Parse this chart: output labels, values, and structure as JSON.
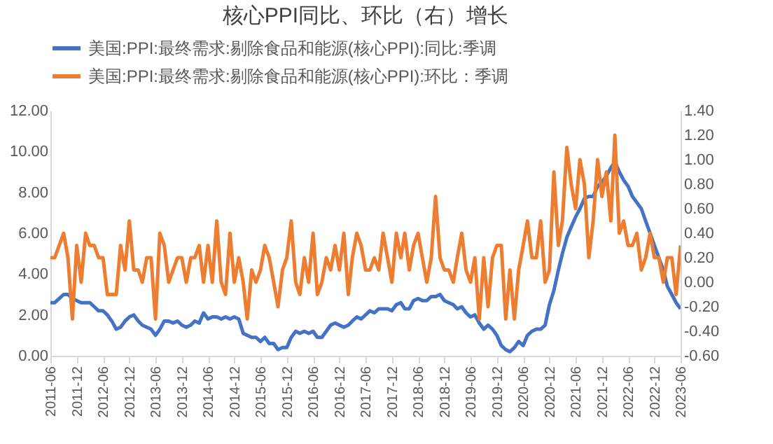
{
  "chart_data": {
    "type": "line",
    "title": "核心PPI同比、环比（右）增长",
    "x": [
      "2011-06",
      "2011-07",
      "2011-08",
      "2011-09",
      "2011-10",
      "2011-11",
      "2011-12",
      "2012-01",
      "2012-02",
      "2012-03",
      "2012-04",
      "2012-05",
      "2012-06",
      "2012-07",
      "2012-08",
      "2012-09",
      "2012-10",
      "2012-11",
      "2012-12",
      "2013-01",
      "2013-02",
      "2013-03",
      "2013-04",
      "2013-05",
      "2013-06",
      "2013-07",
      "2013-08",
      "2013-09",
      "2013-10",
      "2013-11",
      "2013-12",
      "2014-01",
      "2014-02",
      "2014-03",
      "2014-04",
      "2014-05",
      "2014-06",
      "2014-07",
      "2014-08",
      "2014-09",
      "2014-10",
      "2014-11",
      "2014-12",
      "2015-01",
      "2015-02",
      "2015-03",
      "2015-04",
      "2015-05",
      "2015-06",
      "2015-07",
      "2015-08",
      "2015-09",
      "2015-10",
      "2015-11",
      "2015-12",
      "2016-01",
      "2016-02",
      "2016-03",
      "2016-04",
      "2016-05",
      "2016-06",
      "2016-07",
      "2016-08",
      "2016-09",
      "2016-10",
      "2016-11",
      "2016-12",
      "2017-01",
      "2017-02",
      "2017-03",
      "2017-04",
      "2017-05",
      "2017-06",
      "2017-07",
      "2017-08",
      "2017-09",
      "2017-10",
      "2017-11",
      "2017-12",
      "2018-01",
      "2018-02",
      "2018-03",
      "2018-04",
      "2018-05",
      "2018-06",
      "2018-07",
      "2018-08",
      "2018-09",
      "2018-10",
      "2018-11",
      "2018-12",
      "2019-01",
      "2019-02",
      "2019-03",
      "2019-04",
      "2019-05",
      "2019-06",
      "2019-07",
      "2019-08",
      "2019-09",
      "2019-10",
      "2019-11",
      "2019-12",
      "2020-01",
      "2020-02",
      "2020-03",
      "2020-04",
      "2020-05",
      "2020-06",
      "2020-07",
      "2020-08",
      "2020-09",
      "2020-10",
      "2020-11",
      "2020-12",
      "2021-01",
      "2021-02",
      "2021-03",
      "2021-04",
      "2021-05",
      "2021-06",
      "2021-07",
      "2021-08",
      "2021-09",
      "2021-10",
      "2021-11",
      "2021-12",
      "2022-01",
      "2022-02",
      "2022-03",
      "2022-04",
      "2022-05",
      "2022-06",
      "2022-07",
      "2022-08",
      "2022-09",
      "2022-10",
      "2022-11",
      "2022-12",
      "2023-01",
      "2023-02",
      "2023-03",
      "2023-04",
      "2023-05",
      "2023-06"
    ],
    "series": [
      {
        "name": "美国:PPI:最终需求:剔除食品和能源(核心PPI):同比:季调",
        "color": "#4472c4",
        "values": [
          2.6,
          2.6,
          2.8,
          3.0,
          3.0,
          2.8,
          2.7,
          2.6,
          2.6,
          2.6,
          2.4,
          2.2,
          2.2,
          2.0,
          1.7,
          1.3,
          1.4,
          1.7,
          1.9,
          2.0,
          1.7,
          1.5,
          1.4,
          1.3,
          1.0,
          1.3,
          1.7,
          1.7,
          1.6,
          1.7,
          1.5,
          1.4,
          1.5,
          1.7,
          1.6,
          2.1,
          1.8,
          1.9,
          1.9,
          1.8,
          1.9,
          1.8,
          1.9,
          1.8,
          1.1,
          1.0,
          0.9,
          0.9,
          0.7,
          0.9,
          0.6,
          0.6,
          0.3,
          0.4,
          0.4,
          0.9,
          1.2,
          1.1,
          1.2,
          1.1,
          1.2,
          0.9,
          0.9,
          1.2,
          1.5,
          1.6,
          1.5,
          1.4,
          1.5,
          1.7,
          1.9,
          1.8,
          2.0,
          2.2,
          2.1,
          2.3,
          2.3,
          2.3,
          2.2,
          2.5,
          2.6,
          2.3,
          2.3,
          2.7,
          2.8,
          2.7,
          2.7,
          2.9,
          2.9,
          3.0,
          2.7,
          2.6,
          2.5,
          2.3,
          2.4,
          2.1,
          1.9,
          2.0,
          1.6,
          1.3,
          1.5,
          1.3,
          1.0,
          0.5,
          0.3,
          0.2,
          0.4,
          0.7,
          0.5,
          1.0,
          1.2,
          1.3,
          1.3,
          1.5,
          2.5,
          3.2,
          4.2,
          5.0,
          5.8,
          6.3,
          6.8,
          7.2,
          7.7,
          7.8,
          7.8,
          8.3,
          8.5,
          8.8,
          9.2,
          9.5,
          9.0,
          8.6,
          8.3,
          7.8,
          7.5,
          7.2,
          6.6,
          6.0,
          5.4,
          4.8,
          4.2,
          3.4,
          3.0,
          2.6,
          2.3
        ]
      },
      {
        "name": "美国:PPI:最终需求:剔除食品和能源(核心PPI):环比：季调",
        "color": "#ed7d31",
        "axis": "y2",
        "values": [
          0.2,
          0.2,
          0.3,
          0.4,
          0.2,
          -0.3,
          0.3,
          0.0,
          0.4,
          0.3,
          0.3,
          0.2,
          0.2,
          -0.1,
          -0.1,
          -0.1,
          0.3,
          0.1,
          0.5,
          0.1,
          0.1,
          0.0,
          0.2,
          0.2,
          -0.3,
          0.4,
          0.3,
          0.0,
          0.1,
          0.2,
          0.2,
          0.0,
          0.2,
          0.2,
          0.3,
          0.0,
          0.3,
          0.0,
          0.5,
          0.0,
          -0.1,
          0.4,
          0.0,
          0.2,
          0.0,
          -0.3,
          0.1,
          0.0,
          0.1,
          0.3,
          0.2,
          0.0,
          -0.2,
          0.1,
          0.2,
          0.5,
          0.0,
          -0.1,
          0.2,
          0.0,
          0.4,
          -0.1,
          0.0,
          0.2,
          0.1,
          0.3,
          0.1,
          0.4,
          -0.1,
          0.2,
          0.4,
          0.3,
          0.1,
          0.1,
          0.2,
          0.1,
          0.4,
          0.2,
          0.0,
          0.4,
          0.2,
          0.4,
          0.1,
          0.3,
          0.4,
          0.2,
          0.0,
          0.2,
          0.7,
          0.2,
          0.1,
          0.1,
          0.0,
          0.2,
          0.4,
          0.1,
          0.0,
          0.2,
          -0.3,
          0.2,
          -0.2,
          0.2,
          0.3,
          0.3,
          -0.3,
          0.1,
          -0.3,
          0.1,
          0.3,
          0.5,
          0.2,
          0.2,
          0.5,
          0.0,
          0.1,
          0.9,
          0.3,
          0.5,
          1.1,
          0.8,
          0.6,
          1.0,
          0.8,
          0.2,
          0.5,
          1.0,
          0.7,
          0.9,
          0.5,
          1.2,
          0.4,
          0.5,
          0.3,
          0.3,
          0.4,
          0.1,
          0.2,
          0.4,
          0.2,
          0.2,
          0.0,
          0.2,
          0.2,
          -0.1,
          0.3
        ]
      }
    ],
    "xlim": [
      "2011-06",
      "2023-06"
    ],
    "xticks": [
      "2011-06",
      "2011-12",
      "2012-06",
      "2012-12",
      "2013-06",
      "2013-12",
      "2014-06",
      "2014-12",
      "2015-06",
      "2015-12",
      "2016-06",
      "2016-12",
      "2017-06",
      "2017-12",
      "2018-06",
      "2018-12",
      "2019-06",
      "2019-12",
      "2020-06",
      "2020-12",
      "2021-06",
      "2021-12",
      "2022-06",
      "2022-12",
      "2023-06"
    ],
    "ylim": [
      0,
      12
    ],
    "yticks": [
      {
        "value": 0,
        "label": "0.00"
      },
      {
        "value": 2,
        "label": "2.00"
      },
      {
        "value": 4,
        "label": "4.00"
      },
      {
        "value": 6,
        "label": "6.00"
      },
      {
        "value": 8,
        "label": "8.00"
      },
      {
        "value": 10,
        "label": "10.00"
      },
      {
        "value": 12,
        "label": "12.00"
      }
    ],
    "y2lim": [
      -0.6,
      1.4
    ],
    "y2ticks": [
      {
        "value": -0.6,
        "label": "-0.60"
      },
      {
        "value": -0.4,
        "label": "-0.40"
      },
      {
        "value": -0.2,
        "label": "-0.20"
      },
      {
        "value": 0,
        "label": "0.00"
      },
      {
        "value": 0.2,
        "label": "0.20"
      },
      {
        "value": 0.4,
        "label": "0.40"
      },
      {
        "value": 0.6,
        "label": "0.60"
      },
      {
        "value": 0.8,
        "label": "0.80"
      },
      {
        "value": 1,
        "label": "1.00"
      },
      {
        "value": 1.2,
        "label": "1.20"
      },
      {
        "value": 1.4,
        "label": "1.40"
      }
    ],
    "legend": "top",
    "grid": false
  }
}
